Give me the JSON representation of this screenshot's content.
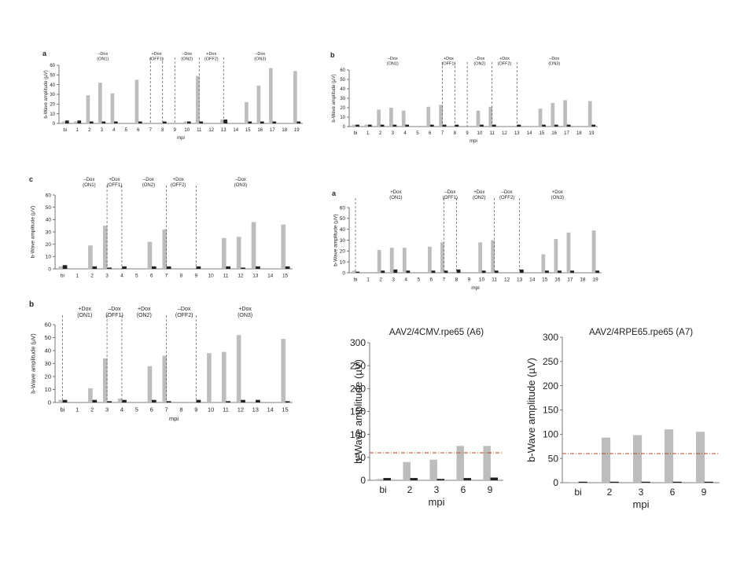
{
  "chart_data": [
    {
      "type": "bar",
      "panel_letter": "a",
      "ylabel": "b-Wave amplitude (µV)",
      "xlabel": "mpi",
      "ylim": [
        0,
        60
      ],
      "yticks": [
        0,
        10,
        20,
        30,
        40,
        50,
        60
      ],
      "categories": [
        "bi",
        "1",
        "2",
        "3",
        "4",
        "5",
        "6",
        "7",
        "8",
        "9",
        "10",
        "11",
        "12",
        "13",
        "14",
        "15",
        "16",
        "17",
        "18",
        "19"
      ],
      "series": [
        {
          "values": [
            2,
            2,
            29,
            42,
            31,
            0,
            45,
            0,
            1,
            0,
            2,
            49,
            0,
            4,
            0,
            22,
            39,
            57,
            0,
            54
          ],
          "color": "#bdbdbd"
        },
        {
          "values": [
            3,
            3,
            2,
            2,
            2,
            0,
            2,
            0,
            2,
            0,
            2,
            2,
            0,
            4,
            0,
            2,
            2,
            2,
            0,
            2
          ],
          "color": "#222222"
        }
      ],
      "annotations": [
        {
          "text": "–Dox",
          "sub": "(ON1)",
          "center": 3.6
        },
        {
          "text": "+Dox",
          "sub": "(OFF1)",
          "center": 8
        },
        {
          "text": "–Dox",
          "sub": "(ON2)",
          "center": 10.5
        },
        {
          "text": "+Dox",
          "sub": "(OFF2)",
          "center": 12.5
        },
        {
          "text": "–Dox",
          "sub": "(ON3)",
          "center": 16.5
        }
      ],
      "dividers": [
        7.5,
        8.5,
        9.5,
        11.5,
        13.5
      ]
    },
    {
      "type": "bar",
      "panel_letter": "b",
      "ylabel": "b-Wave amplitude (µV)",
      "xlabel": "mpi",
      "ylim": [
        0,
        60
      ],
      "yticks": [
        0,
        10,
        20,
        30,
        40,
        50,
        60
      ],
      "categories": [
        "bi",
        "1",
        "2",
        "3",
        "4",
        "5",
        "6",
        "7",
        "8",
        "9",
        "10",
        "11",
        "12",
        "13",
        "14",
        "15",
        "16",
        "17",
        "18",
        "19"
      ],
      "series": [
        {
          "values": [
            2,
            2,
            18,
            20,
            17,
            0,
            21,
            23,
            0,
            0,
            17,
            21,
            0,
            0,
            0,
            19,
            25,
            28,
            0,
            27
          ],
          "color": "#bdbdbd"
        },
        {
          "values": [
            2,
            2,
            2,
            2,
            2,
            0,
            2,
            2,
            2,
            0,
            2,
            2,
            0,
            2,
            0,
            2,
            2,
            2,
            0,
            2
          ],
          "color": "#222222"
        }
      ],
      "annotations": [
        {
          "text": "–Dox",
          "sub": "(ON1)",
          "center": 3.5
        },
        {
          "text": "+Dox",
          "sub": "(OFF1)",
          "center": 8
        },
        {
          "text": "–Dox",
          "sub": "(ON2)",
          "center": 10.5
        },
        {
          "text": "+Dox",
          "sub": "(OFF2)",
          "center": 12.5
        },
        {
          "text": "–Dox",
          "sub": "(ON3)",
          "center": 16.5
        }
      ],
      "dividers": [
        7.5,
        8.5,
        9.5,
        11.5,
        13.5
      ]
    },
    {
      "type": "bar",
      "panel_letter": "c",
      "ylabel": "b-Wave amplitude (µV)",
      "xlabel": "",
      "ylim": [
        0,
        60
      ],
      "yticks": [
        0,
        10,
        20,
        30,
        40,
        50,
        60
      ],
      "categories": [
        "bi",
        "1",
        "2",
        "3",
        "4",
        "5",
        "6",
        "7",
        "8",
        "9",
        "10",
        "11",
        "12",
        "13",
        "14",
        "15"
      ],
      "series": [
        {
          "values": [
            2,
            0,
            19,
            35,
            0,
            0,
            22,
            32,
            0,
            0,
            0,
            25,
            26,
            38,
            0,
            36
          ],
          "color": "#bdbdbd"
        },
        {
          "values": [
            3,
            0,
            2,
            1,
            2,
            0,
            2,
            2,
            0,
            2,
            0,
            2,
            1,
            2,
            0,
            2
          ],
          "color": "#222222"
        }
      ],
      "annotations": [
        {
          "text": "–Dox",
          "sub": "(ON1)",
          "center": 2.3
        },
        {
          "text": "+Dox",
          "sub": "(OFF1)",
          "center": 4
        },
        {
          "text": "–Dox",
          "sub": "(ON2)",
          "center": 6.3
        },
        {
          "text": "+Dox",
          "sub": "(OFF2)",
          "center": 8.3
        },
        {
          "text": "–Dox",
          "sub": "(ON3)",
          "center": 12.5
        }
      ],
      "dividers": [
        3.5,
        4.5,
        7.5,
        9.5
      ]
    },
    {
      "type": "bar",
      "panel_letter": "a",
      "ylabel": "b-Wave amplitude (µV)",
      "xlabel": "mpi",
      "ylim": [
        0,
        60
      ],
      "yticks": [
        0,
        10,
        20,
        30,
        40,
        50,
        60
      ],
      "categories": [
        "bi",
        "1",
        "2",
        "3",
        "4",
        "5",
        "6",
        "7",
        "8",
        "9",
        "10",
        "11",
        "12",
        "13",
        "14",
        "15",
        "16",
        "17",
        "18",
        "19"
      ],
      "series": [
        {
          "values": [
            2,
            0,
            21,
            23,
            23,
            0,
            24,
            28,
            0,
            0,
            28,
            30,
            0,
            0,
            0,
            17,
            31,
            37,
            0,
            39
          ],
          "color": "#bdbdbd"
        },
        {
          "values": [
            1,
            0,
            2,
            3,
            2,
            0,
            2,
            2,
            3,
            0,
            2,
            2,
            0,
            3,
            0,
            2,
            2,
            2,
            0,
            2
          ],
          "color": "#222222"
        }
      ],
      "annotations": [
        {
          "text": "+Dox",
          "sub": "(ON1)",
          "center": 3.7
        },
        {
          "text": "–Dox",
          "sub": "(OFF1)",
          "center": 8
        },
        {
          "text": "+Dox",
          "sub": "(ON2)",
          "center": 10.3
        },
        {
          "text": "–Dox",
          "sub": "(OFF2)",
          "center": 12.5
        },
        {
          "text": "+Dox",
          "sub": "(ON3)",
          "center": 16.5
        }
      ],
      "dividers": [
        0.5,
        7.5,
        8.5,
        11.5,
        13.5
      ]
    },
    {
      "type": "bar",
      "panel_letter": "b",
      "ylabel": "b-Wave amplitude (µV)",
      "xlabel": "mpi",
      "ylim": [
        0,
        60
      ],
      "yticks": [
        0,
        10,
        20,
        30,
        40,
        50,
        60
      ],
      "categories": [
        "bi",
        "1",
        "2",
        "3",
        "4",
        "5",
        "6",
        "7",
        "8",
        "9",
        "10",
        "11",
        "12",
        "13",
        "14",
        "15"
      ],
      "series": [
        {
          "values": [
            2,
            0,
            11,
            34,
            3,
            0,
            28,
            36,
            0,
            0,
            38,
            39,
            52,
            0,
            0,
            49
          ],
          "color": "#bdbdbd"
        },
        {
          "values": [
            2,
            0,
            2,
            1,
            2,
            0,
            2,
            1,
            0,
            2,
            0,
            1,
            2,
            2,
            0,
            1
          ],
          "color": "#222222"
        }
      ],
      "annotations": [
        {
          "text": "+Dox",
          "sub": "(ON1)",
          "center": 2
        },
        {
          "text": "–Dox",
          "sub": "(OFF1)",
          "center": 4
        },
        {
          "text": "+Dox",
          "sub": "(ON2)",
          "center": 6
        },
        {
          "text": "–Dox",
          "sub": "(OFF2)",
          "center": 8.7
        },
        {
          "text": "+Dox",
          "sub": "(ON3)",
          "center": 12.8
        }
      ],
      "dividers": [
        0.5,
        3.5,
        4.5,
        7.5,
        9.5
      ]
    },
    {
      "type": "bar",
      "title": "AAV2/4CMV.rpe65 (A6)",
      "ylabel": "b-Wave amplitude (µV)",
      "xlabel": "mpi",
      "ylim": [
        0,
        300
      ],
      "yticks": [
        0,
        50,
        100,
        150,
        200,
        250,
        300
      ],
      "categories": [
        "bi",
        "2",
        "3",
        "6",
        "9"
      ],
      "series": [
        {
          "values": [
            3,
            40,
            45,
            75,
            75
          ],
          "color": "#bdbdbd"
        },
        {
          "values": [
            5,
            5,
            3,
            5,
            6
          ],
          "color": "#222222"
        }
      ],
      "threshold": 60,
      "threshold_color": "#b5441c"
    },
    {
      "type": "bar",
      "title": "AAV2/4RPE65.rpe65 (A7)",
      "ylabel": "b-Wave amplitude (µV)",
      "xlabel": "mpi",
      "ylim": [
        0,
        300
      ],
      "yticks": [
        0,
        50,
        100,
        150,
        200,
        250,
        300
      ],
      "categories": [
        "bi",
        "2",
        "3",
        "6",
        "9"
      ],
      "series": [
        {
          "values": [
            1,
            93,
            98,
            110,
            105
          ],
          "color": "#bdbdbd"
        },
        {
          "values": [
            2,
            2,
            2,
            2,
            2
          ],
          "color": "#222222"
        }
      ],
      "threshold": 60,
      "threshold_color": "#b5441c"
    }
  ]
}
